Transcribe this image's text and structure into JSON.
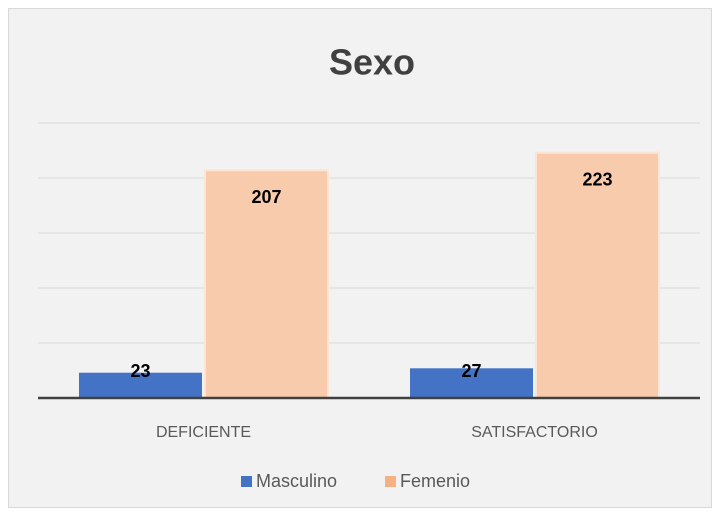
{
  "chart_data": {
    "type": "bar",
    "title": "Sexo",
    "categories": [
      "DEFICIENTE",
      "SATISFACTORIO"
    ],
    "series": [
      {
        "name": "Masculino",
        "color": "#4472c4",
        "values": [
          23,
          27
        ]
      },
      {
        "name": "Femenio",
        "color": "#f4b183",
        "values": [
          207,
          223
        ]
      }
    ],
    "ylim": [
      0,
      250
    ],
    "yticks": [
      0,
      50,
      100,
      150,
      200,
      250
    ],
    "grid": true,
    "legend": "bottom"
  }
}
